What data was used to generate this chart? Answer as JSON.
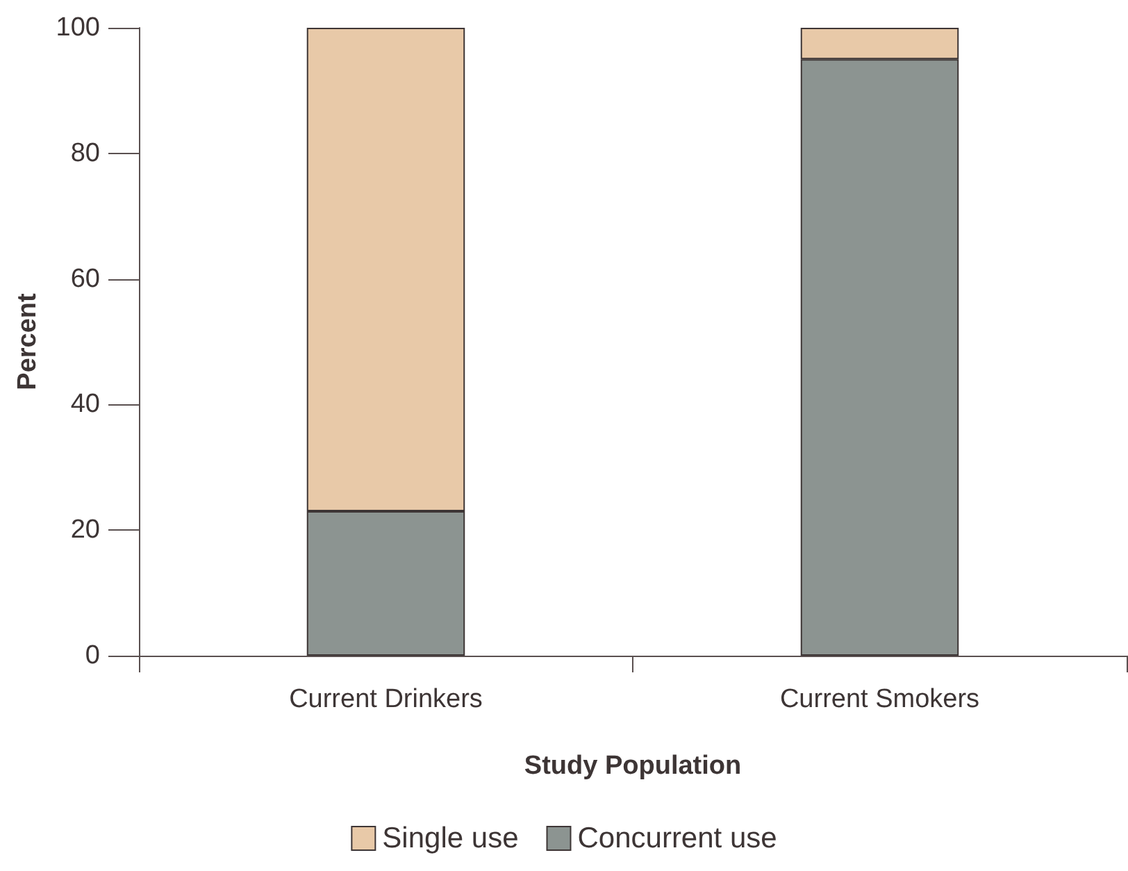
{
  "chart_data": {
    "type": "bar",
    "stacked": true,
    "xlabel": "Study Population",
    "ylabel": "Percent",
    "categories": [
      "Current Drinkers",
      "Current Smokers"
    ],
    "series": [
      {
        "name": "Concurrent use",
        "color": "#8c9491",
        "values": [
          23,
          95
        ]
      },
      {
        "name": "Single use",
        "color": "#e8c9a8",
        "values": [
          77,
          5
        ]
      }
    ],
    "ylim": [
      0,
      100
    ],
    "yticks": [
      0,
      20,
      40,
      60,
      80,
      100
    ],
    "grid": false,
    "legend": "bottom"
  }
}
